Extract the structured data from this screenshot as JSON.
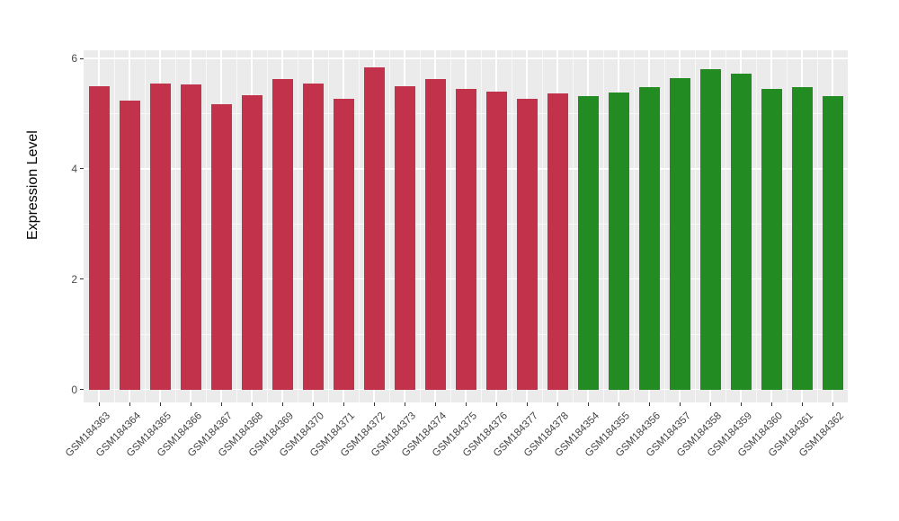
{
  "chart_data": {
    "type": "bar",
    "title": "",
    "ylabel": "Expression Level",
    "xlabel": "",
    "ylim": [
      0,
      6.4
    ],
    "yticks": [
      0,
      2,
      4,
      6
    ],
    "yticks_minor": [
      1,
      3,
      5
    ],
    "grid": true,
    "legend_position": "none",
    "panel_background": "#EBEBEB",
    "gridline_color": "#FFFFFF",
    "group_colors": [
      "#C3324B",
      "#228B22"
    ],
    "categories": [
      "GSM184363",
      "GSM184364",
      "GSM184365",
      "GSM184366",
      "GSM184367",
      "GSM184368",
      "GSM184369",
      "GSM184370",
      "GSM184371",
      "GSM184372",
      "GSM184373",
      "GSM184374",
      "GSM184375",
      "GSM184376",
      "GSM184377",
      "GSM184378",
      "GSM184354",
      "GSM184355",
      "GSM184356",
      "GSM184357",
      "GSM184358",
      "GSM184359",
      "GSM184360",
      "GSM184361",
      "GSM184362"
    ],
    "values": [
      5.5,
      5.24,
      5.54,
      5.53,
      5.17,
      5.34,
      5.62,
      5.55,
      5.26,
      5.84,
      5.5,
      5.62,
      5.45,
      5.4,
      5.27,
      5.36,
      5.31,
      5.39,
      5.48,
      5.64,
      5.8,
      5.72,
      5.45,
      5.48,
      5.32
    ],
    "groups": [
      0,
      0,
      0,
      0,
      0,
      0,
      0,
      0,
      0,
      0,
      0,
      0,
      0,
      0,
      0,
      0,
      1,
      1,
      1,
      1,
      1,
      1,
      1,
      1,
      1
    ]
  }
}
